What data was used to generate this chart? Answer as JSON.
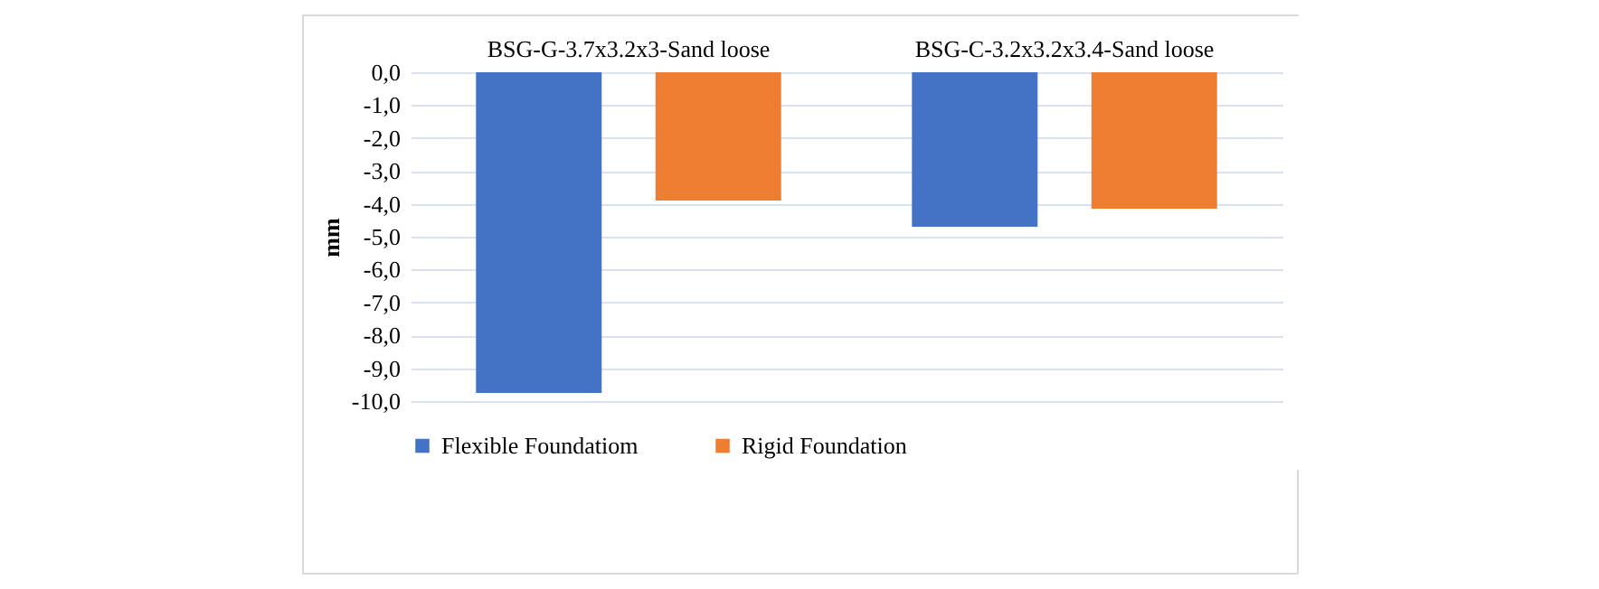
{
  "chart_data": {
    "type": "bar",
    "ylabel": "mm",
    "categories": [
      "BSG-G-3.7x3.2x3-Sand loose",
      "BSG-C-3.2x3.2x3.4-Sand loose"
    ],
    "series": [
      {
        "name": "Flexible Foundatiom",
        "color": "#4472c4",
        "values": [
          -9.75,
          -4.7
        ]
      },
      {
        "name": "Rigid Foundation",
        "color": "#ed7d31",
        "values": [
          -3.9,
          -4.15
        ]
      }
    ],
    "ylim": [
      -10,
      0
    ],
    "yticks": [
      {
        "value": 0,
        "label": "0,0"
      },
      {
        "value": -1,
        "label": "-1,0"
      },
      {
        "value": -2,
        "label": "-2,0"
      },
      {
        "value": -3,
        "label": "-3,0"
      },
      {
        "value": -4,
        "label": "-4,0"
      },
      {
        "value": -5,
        "label": "-5,0"
      },
      {
        "value": -6,
        "label": "-6,0"
      },
      {
        "value": -7,
        "label": "-7,0"
      },
      {
        "value": -8,
        "label": "-8,0"
      },
      {
        "value": -9,
        "label": "-9,0"
      },
      {
        "value": -10,
        "label": "-10,0"
      }
    ],
    "grid": true,
    "legend": "bottom"
  }
}
